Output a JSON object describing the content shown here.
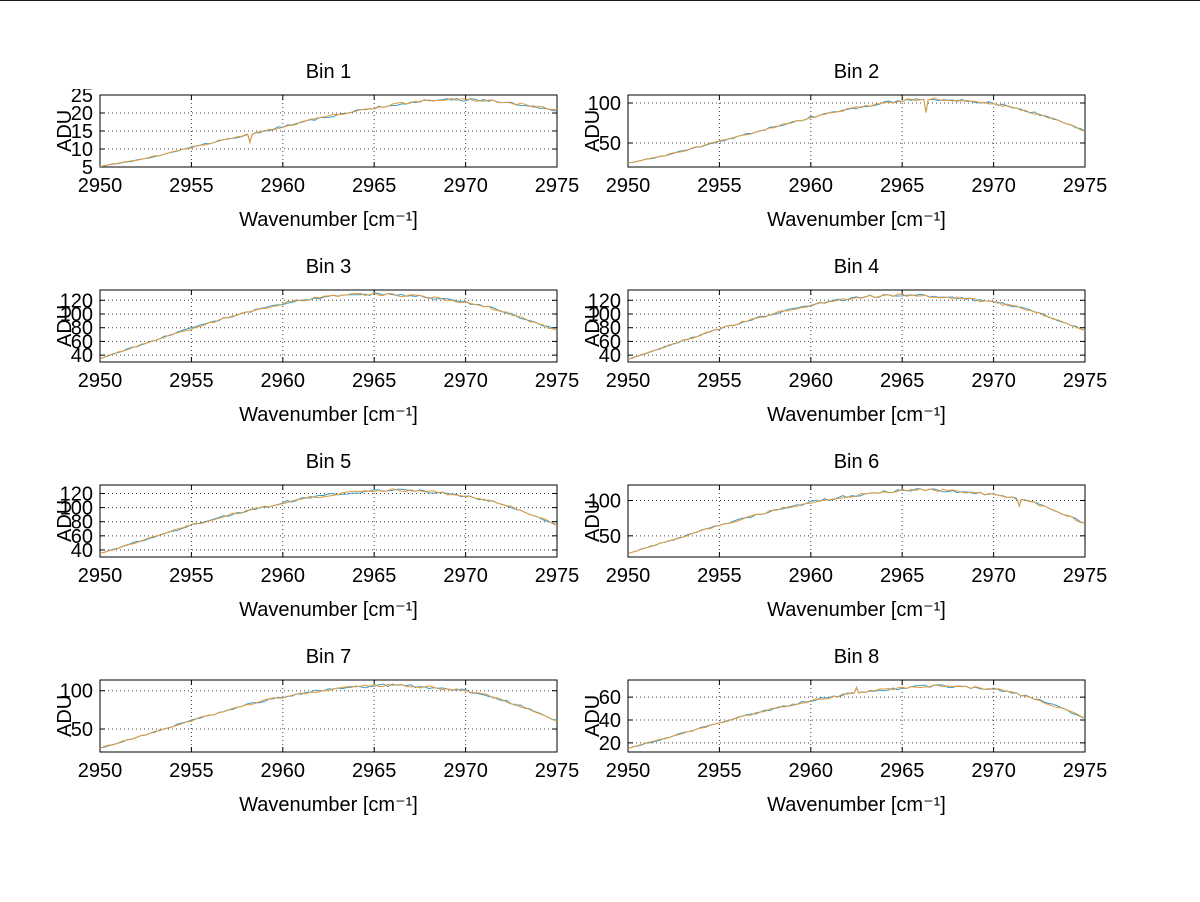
{
  "figure": {
    "background": "#ffffff",
    "text_color": "#000000"
  },
  "traces": {
    "count": 2,
    "colors": [
      "#3c9bc7",
      "#e39b3b"
    ]
  },
  "chart_data": [
    {
      "type": "line",
      "title": "Bin 1",
      "xlabel": "Wavenumber [cm⁻¹]",
      "ylabel": "ADU",
      "x_start": 2950,
      "x_step": 1,
      "xlim": [
        2950,
        2975
      ],
      "xticks": [
        2950,
        2955,
        2960,
        2965,
        2970,
        2975
      ],
      "yticks": [
        5,
        10,
        15,
        20,
        25
      ],
      "ylim": [
        5,
        25
      ],
      "values": [
        5.2,
        6.0,
        6.9,
        8.0,
        9.2,
        10.4,
        11.6,
        12.8,
        13.9,
        15.0,
        16.2,
        17.4,
        18.5,
        19.5,
        20.5,
        21.4,
        22.2,
        23.0,
        23.6,
        24.0,
        23.7,
        23.5,
        23.0,
        22.4,
        21.6,
        20.8
      ],
      "spikes": [
        {
          "x": 2958.2,
          "y": 11.8
        }
      ]
    },
    {
      "type": "line",
      "title": "Bin 2",
      "xlabel": "Wavenumber [cm⁻¹]",
      "ylabel": "ADU",
      "x_start": 2950,
      "x_step": 1,
      "xlim": [
        2950,
        2975
      ],
      "xticks": [
        2950,
        2955,
        2960,
        2965,
        2970,
        2975
      ],
      "yticks": [
        50,
        100
      ],
      "ylim": [
        20,
        110
      ],
      "values": [
        25,
        29.5,
        34.5,
        40,
        46,
        52,
        58,
        64,
        70,
        76,
        82,
        87.5,
        92,
        96.5,
        100,
        103,
        104.5,
        104.5,
        103.5,
        102,
        99.5,
        95,
        89,
        82,
        74,
        65
      ],
      "spikes": [
        {
          "x": 2966.3,
          "y": 88
        }
      ]
    },
    {
      "type": "line",
      "title": "Bin 3",
      "xlabel": "Wavenumber [cm⁻¹]",
      "ylabel": "ADU",
      "x_start": 2950,
      "x_step": 1,
      "xlim": [
        2950,
        2975
      ],
      "xticks": [
        2950,
        2955,
        2960,
        2965,
        2970,
        2975
      ],
      "yticks": [
        40,
        60,
        80,
        100,
        120
      ],
      "ylim": [
        30,
        135
      ],
      "values": [
        35,
        44,
        53,
        62,
        71,
        79,
        87,
        95,
        102,
        109,
        115,
        120,
        124,
        127,
        128.5,
        129,
        128,
        126.5,
        124,
        121,
        117,
        112,
        104,
        95,
        85.5,
        76
      ],
      "spikes": []
    },
    {
      "type": "line",
      "title": "Bin 4",
      "xlabel": "Wavenumber [cm⁻¹]",
      "ylabel": "ADU",
      "x_start": 2950,
      "x_step": 1,
      "xlim": [
        2950,
        2975
      ],
      "xticks": [
        2950,
        2955,
        2960,
        2965,
        2970,
        2975
      ],
      "yticks": [
        40,
        60,
        80,
        100,
        120
      ],
      "ylim": [
        30,
        135
      ],
      "values": [
        34,
        43,
        52,
        61,
        70,
        78,
        86,
        93.5,
        100.5,
        107,
        113,
        118,
        122,
        125,
        127,
        127.8,
        127,
        125.5,
        123.5,
        120.5,
        117,
        112,
        105,
        96,
        86,
        76.5
      ],
      "spikes": []
    },
    {
      "type": "line",
      "title": "Bin 5",
      "xlabel": "Wavenumber [cm⁻¹]",
      "ylabel": "ADU",
      "x_start": 2950,
      "x_step": 1,
      "xlim": [
        2950,
        2975
      ],
      "xticks": [
        2950,
        2955,
        2960,
        2965,
        2970,
        2975
      ],
      "yticks": [
        40,
        60,
        80,
        100,
        120
      ],
      "ylim": [
        30,
        132
      ],
      "values": [
        35,
        43,
        51,
        59,
        67,
        75,
        82,
        89,
        95,
        101,
        107,
        112,
        116,
        119.5,
        122,
        124,
        125,
        124.3,
        122.5,
        119.8,
        116,
        111,
        105,
        96,
        86,
        75
      ],
      "spikes": []
    },
    {
      "type": "line",
      "title": "Bin 6",
      "xlabel": "Wavenumber [cm⁻¹]",
      "ylabel": "ADU",
      "x_start": 2950,
      "x_step": 1,
      "xlim": [
        2950,
        2975
      ],
      "xticks": [
        2950,
        2955,
        2960,
        2965,
        2970,
        2975
      ],
      "yticks": [
        50,
        100
      ],
      "ylim": [
        20,
        122
      ],
      "values": [
        25,
        33,
        41,
        49,
        57,
        65,
        72,
        79,
        86,
        92,
        97.5,
        102,
        106,
        109.5,
        112,
        114,
        115,
        114.5,
        113,
        111,
        108,
        104,
        98,
        90,
        79,
        67
      ],
      "spikes": [
        {
          "x": 2971.4,
          "y": 92
        }
      ]
    },
    {
      "type": "line",
      "title": "Bin 7",
      "xlabel": "Wavenumber [cm⁻¹]",
      "ylabel": "ADU",
      "x_start": 2950,
      "x_step": 1,
      "xlim": [
        2950,
        2975
      ],
      "xticks": [
        2950,
        2955,
        2960,
        2965,
        2970,
        2975
      ],
      "yticks": [
        50,
        100
      ],
      "ylim": [
        20,
        114
      ],
      "values": [
        25,
        32,
        39,
        46.5,
        54,
        61,
        68,
        74.5,
        81,
        87,
        92,
        96.5,
        100,
        103,
        105,
        106.5,
        107,
        106,
        104.5,
        102.5,
        100,
        95,
        88,
        80,
        70.5,
        60.5
      ],
      "spikes": []
    },
    {
      "type": "line",
      "title": "Bin 8",
      "xlabel": "Wavenumber [cm⁻¹]",
      "ylabel": "ADU",
      "x_start": 2950,
      "x_step": 1,
      "xlim": [
        2950,
        2975
      ],
      "xticks": [
        2950,
        2955,
        2960,
        2965,
        2970,
        2975
      ],
      "yticks": [
        20,
        40,
        60
      ],
      "ylim": [
        12,
        75
      ],
      "values": [
        15,
        19.5,
        24,
        28.5,
        33,
        37.5,
        42,
        46,
        50,
        53.5,
        57,
        60,
        62.5,
        64.5,
        66.5,
        68,
        69.5,
        70,
        69.5,
        68.5,
        67,
        64,
        60,
        54.5,
        48.5,
        42
      ],
      "spikes": [
        {
          "x": 2962.5,
          "y": 68.5
        }
      ]
    }
  ]
}
